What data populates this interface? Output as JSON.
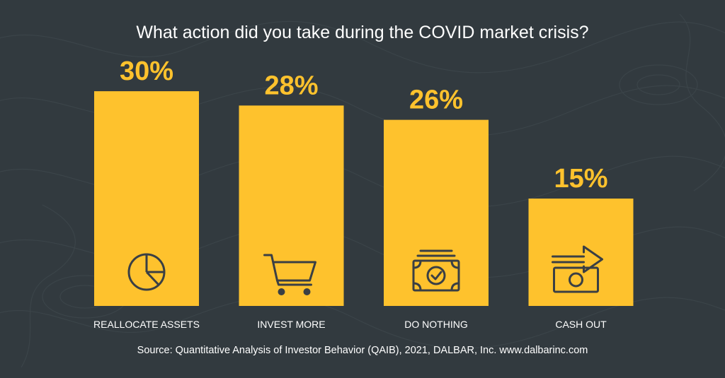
{
  "chart_data": {
    "type": "bar",
    "title": "What action did you take during the COVID market crisis?",
    "categories": [
      "REALLOCATE ASSETS",
      "INVEST MORE",
      "DO NOTHING",
      "CASH OUT"
    ],
    "values": [
      30,
      28,
      26,
      15
    ],
    "value_labels": [
      "30%",
      "28%",
      "26%",
      "15%"
    ],
    "icons": [
      "pie-chart-icon",
      "shopping-cart-icon",
      "money-check-icon",
      "cash-out-icon"
    ],
    "xlabel": "",
    "ylabel": "",
    "grid": false,
    "source": "Source: Quantitative Analysis of Investor Behavior (QAIB), 2021, DALBAR, Inc. www.dalbarinc.com"
  },
  "colors": {
    "background": "#323a3f",
    "bar": "#fec22d",
    "value_label": "#fec22d",
    "text": "#ffffff",
    "icon": "#3a3f44"
  }
}
